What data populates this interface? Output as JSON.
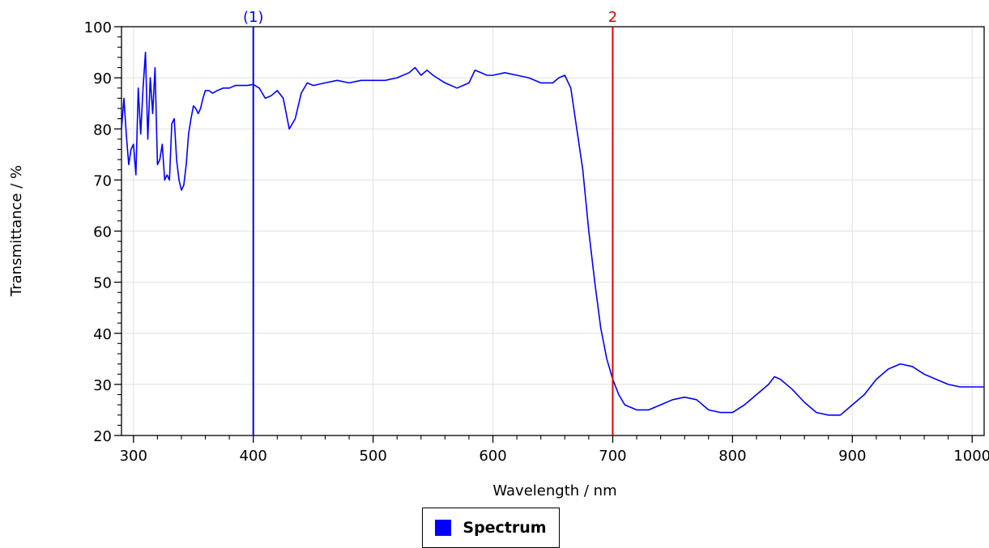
{
  "chart_data": {
    "type": "line",
    "title": "",
    "xlabel": "Wavelength / nm",
    "ylabel": "Transmittance / %",
    "xlim": [
      290,
      1010
    ],
    "ylim": [
      20,
      100
    ],
    "xticks": [
      300,
      400,
      500,
      600,
      700,
      800,
      900,
      1000
    ],
    "yticks": [
      20,
      30,
      40,
      50,
      60,
      70,
      80,
      90,
      100
    ],
    "grid": true,
    "legend_position": "bottom-center",
    "series": [
      {
        "name": "Spectrum",
        "color": "#0000ff",
        "x": [
          290,
          292,
          294,
          296,
          298,
          300,
          302,
          304,
          306,
          308,
          310,
          312,
          314,
          316,
          318,
          320,
          322,
          324,
          326,
          328,
          330,
          332,
          334,
          336,
          338,
          340,
          342,
          344,
          346,
          348,
          350,
          352,
          354,
          356,
          358,
          360,
          363,
          366,
          370,
          375,
          380,
          385,
          390,
          395,
          400,
          405,
          410,
          415,
          420,
          425,
          430,
          435,
          440,
          445,
          450,
          460,
          470,
          480,
          490,
          500,
          510,
          520,
          530,
          535,
          540,
          545,
          550,
          560,
          570,
          575,
          580,
          585,
          590,
          595,
          600,
          610,
          620,
          630,
          640,
          650,
          655,
          660,
          665,
          670,
          675,
          680,
          685,
          690,
          695,
          700,
          705,
          710,
          720,
          730,
          740,
          750,
          760,
          770,
          780,
          790,
          800,
          810,
          820,
          830,
          835,
          840,
          850,
          860,
          870,
          880,
          890,
          900,
          910,
          920,
          930,
          940,
          950,
          960,
          970,
          980,
          990,
          1000,
          1010
        ],
        "values": [
          80,
          86,
          79,
          73,
          76,
          77,
          71,
          88,
          79,
          88,
          95,
          78,
          90,
          83,
          92,
          73,
          74,
          77,
          70,
          71,
          70,
          81,
          82,
          74,
          70,
          68,
          69,
          73,
          79,
          82,
          84.5,
          84,
          83,
          84,
          86,
          87.5,
          87.5,
          87,
          87.5,
          88,
          88,
          88.5,
          88.5,
          88.5,
          88.7,
          88,
          86,
          86.5,
          87.5,
          86,
          80,
          82,
          87,
          89,
          88.5,
          89,
          89.5,
          89,
          89.5,
          89.5,
          89.5,
          90,
          91,
          92,
          90.5,
          91.5,
          90.5,
          89,
          88,
          88.5,
          89,
          91.5,
          91,
          90.5,
          90.5,
          91,
          90.5,
          90,
          89,
          89,
          90,
          90.5,
          88,
          80,
          72,
          60,
          50,
          41,
          35,
          31,
          28,
          26,
          25,
          25,
          26,
          27,
          27.5,
          27,
          25,
          24.5,
          24.5,
          26,
          28,
          30,
          31.5,
          31,
          29,
          26.5,
          24.5,
          24,
          24,
          26,
          28,
          31,
          33,
          34,
          33.5,
          32,
          31,
          30,
          29.5,
          29.5,
          29.5
        ]
      }
    ],
    "cursors": [
      {
        "label": "(1)",
        "x": 400,
        "color": "#0000ff"
      },
      {
        "label": "2",
        "x": 700,
        "color": "#e00000"
      }
    ]
  }
}
